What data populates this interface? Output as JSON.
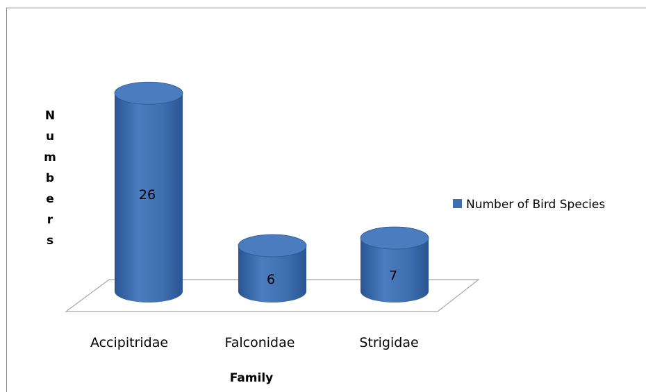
{
  "chart_data": {
    "type": "bar",
    "style": "3d-cylinder",
    "categories": [
      "Accipitridae",
      "Falconidae",
      "Strigidae"
    ],
    "series": [
      {
        "name": "Number of Bird Species",
        "values": [
          26,
          6,
          7
        ],
        "color": "#3e6fb0"
      }
    ],
    "data_labels": [
      "26",
      "6",
      "7"
    ],
    "title": "",
    "xlabel": "Family",
    "ylabel": "Numbers",
    "ylim": [
      0,
      27.3
    ],
    "grid": false,
    "legend_position": "right",
    "colors": {
      "bar_fill": "#3e6fb0",
      "bar_top": "#4a7cbf",
      "bar_dark": "#2a5593",
      "floor_line": "#a6a6a6",
      "frame_line": "#8a8a8a"
    }
  }
}
